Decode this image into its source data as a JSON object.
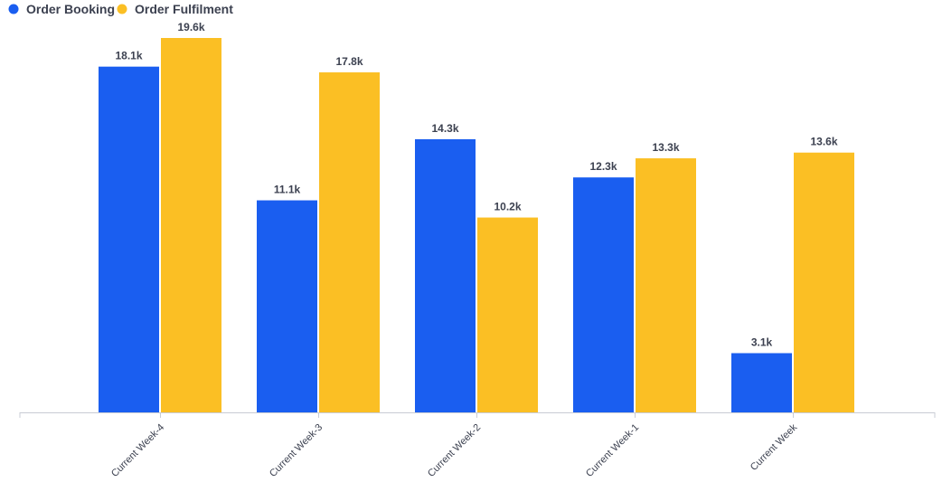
{
  "chart_data": {
    "type": "bar",
    "categories": [
      "Current Week-4",
      "Current Week-3",
      "Current Week-2",
      "Current Week-1",
      "Current Week"
    ],
    "series": [
      {
        "name": "Order Booking",
        "color": "#1a5ef0",
        "values": [
          18100,
          11100,
          14300,
          12300,
          3100
        ],
        "labels": [
          "18.1k",
          "11.1k",
          "14.3k",
          "12.3k",
          "3.1k"
        ]
      },
      {
        "name": "Order Fulfilment",
        "color": "#fbbf24",
        "values": [
          19600,
          17800,
          10200,
          13300,
          13600
        ],
        "labels": [
          "19.6k",
          "17.8k",
          "10.2k",
          "13.3k",
          "13.6k"
        ]
      }
    ],
    "ylim": [
      0,
      22000
    ],
    "grid": false,
    "legend": "top-left",
    "axis_color": "#c8ccd4",
    "text_color": "#3c4150"
  }
}
